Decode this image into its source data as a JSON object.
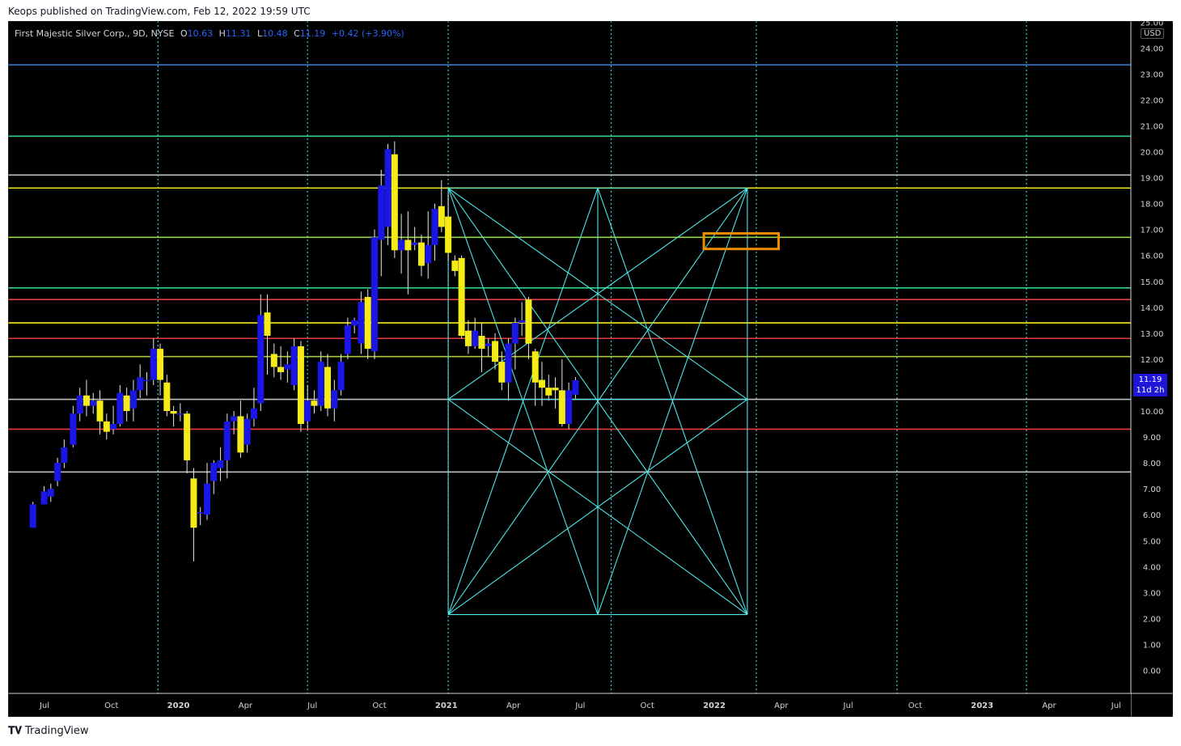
{
  "header": {
    "publisher_line": "Keops published on TradingView.com, Feb 12, 2022 19:59 UTC"
  },
  "legend": {
    "symbol": "First Majestic Silver Corp., 9D, NYSE",
    "o_label": "O",
    "o_value": "10.63",
    "h_label": "H",
    "h_value": "11.31",
    "l_label": "L",
    "l_value": "10.48",
    "c_label": "C",
    "c_value": "11.19",
    "change": "+0.42 (+3.90%)"
  },
  "currency": "USD",
  "last_price": {
    "value": "11.19",
    "countdown": "11d 2h"
  },
  "footer": {
    "brand": "TradingView",
    "logo": "tradingview-logo-icon"
  },
  "colors": {
    "up": "#1a17e6",
    "down": "#f5ec17",
    "background": "#000000",
    "fib": "#4de6e6",
    "target_box": "#f08c00"
  },
  "chart_data": {
    "type": "candlestick",
    "interval": "9D",
    "ylim": [
      0,
      25
    ],
    "y_ticks": [
      "0.00",
      "1.00",
      "2.00",
      "3.00",
      "4.00",
      "5.00",
      "6.00",
      "7.00",
      "8.00",
      "9.00",
      "10.00",
      "11.00",
      "12.00",
      "13.00",
      "14.00",
      "15.00",
      "16.00",
      "17.00",
      "18.00",
      "19.00",
      "20.00",
      "21.00",
      "22.00",
      "23.00",
      "24.00",
      "25.00"
    ],
    "x_ticks": [
      {
        "label": "Jul",
        "m": 0
      },
      {
        "label": "Oct",
        "m": 3
      },
      {
        "label": "2020",
        "m": 6,
        "bold": true
      },
      {
        "label": "Apr",
        "m": 9
      },
      {
        "label": "Jul",
        "m": 12
      },
      {
        "label": "Oct",
        "m": 15
      },
      {
        "label": "2021",
        "m": 18,
        "bold": true
      },
      {
        "label": "Apr",
        "m": 21
      },
      {
        "label": "Jul",
        "m": 24
      },
      {
        "label": "Oct",
        "m": 27
      },
      {
        "label": "2022",
        "m": 30,
        "bold": true
      },
      {
        "label": "Apr",
        "m": 33
      },
      {
        "label": "Jul",
        "m": 36
      },
      {
        "label": "Oct",
        "m": 39
      },
      {
        "label": "2023",
        "m": 42,
        "bold": true
      },
      {
        "label": "Apr",
        "m": 45
      },
      {
        "label": "Jul",
        "m": 48
      }
    ],
    "candles": [
      [
        -0.3,
        5.5,
        6.4,
        5.5,
        6.5
      ],
      [
        0.2,
        6.4,
        6.9,
        6.4,
        7.1
      ],
      [
        0.5,
        6.7,
        7.0,
        6.5,
        7.2
      ],
      [
        0.8,
        7.3,
        8.0,
        7.1,
        8.2
      ],
      [
        1.1,
        8.0,
        8.6,
        7.8,
        8.9
      ],
      [
        1.5,
        8.7,
        9.9,
        8.6,
        10.2
      ],
      [
        1.8,
        9.9,
        10.6,
        9.6,
        10.9
      ],
      [
        2.1,
        10.6,
        10.2,
        9.8,
        11.2
      ],
      [
        2.4,
        10.2,
        10.4,
        9.9,
        10.7
      ],
      [
        2.7,
        10.4,
        9.6,
        9.1,
        10.8
      ],
      [
        3.0,
        9.6,
        9.2,
        8.9,
        9.9
      ],
      [
        3.3,
        9.3,
        9.5,
        9.1,
        10.2
      ],
      [
        3.6,
        9.5,
        10.7,
        9.4,
        11.0
      ],
      [
        3.9,
        10.6,
        10.0,
        9.6,
        10.9
      ],
      [
        4.2,
        10.1,
        10.8,
        9.6,
        11.2
      ],
      [
        4.5,
        10.8,
        11.3,
        10.5,
        11.8
      ],
      [
        4.8,
        11.2,
        11.2,
        10.6,
        11.5
      ],
      [
        5.1,
        11.2,
        12.4,
        11.0,
        12.8
      ],
      [
        5.4,
        12.4,
        11.2,
        10.6,
        12.6
      ],
      [
        5.7,
        11.1,
        10.0,
        9.8,
        11.4
      ],
      [
        6.0,
        10.0,
        9.9,
        9.4,
        10.2
      ],
      [
        6.3,
        9.9,
        9.9,
        9.6,
        10.3
      ],
      [
        6.6,
        9.9,
        8.1,
        7.6,
        10.0
      ],
      [
        6.9,
        7.4,
        5.5,
        4.2,
        7.8
      ],
      [
        7.2,
        6.1,
        6.1,
        5.6,
        6.3
      ],
      [
        7.5,
        6.0,
        7.2,
        5.8,
        8.0
      ],
      [
        7.8,
        7.3,
        8.0,
        6.8,
        8.1
      ],
      [
        8.1,
        7.8,
        8.1,
        7.3,
        8.6
      ],
      [
        8.4,
        8.1,
        9.6,
        7.4,
        9.9
      ],
      [
        8.7,
        9.6,
        9.8,
        9.1,
        10.0
      ],
      [
        9.0,
        9.8,
        8.4,
        8.2,
        10.4
      ],
      [
        9.3,
        8.7,
        9.7,
        8.4,
        9.9
      ],
      [
        9.6,
        9.7,
        10.1,
        9.4,
        10.9
      ],
      [
        9.9,
        10.3,
        13.7,
        10.0,
        14.5
      ],
      [
        10.2,
        13.8,
        12.9,
        11.4,
        14.5
      ],
      [
        10.5,
        12.2,
        11.7,
        11.3,
        12.6
      ],
      [
        10.8,
        11.7,
        11.5,
        11.2,
        12.5
      ],
      [
        11.1,
        11.6,
        11.8,
        11.1,
        12.3
      ],
      [
        11.4,
        11.0,
        12.5,
        10.8,
        12.8
      ],
      [
        11.7,
        12.5,
        9.5,
        9.2,
        12.7
      ],
      [
        12.0,
        9.6,
        10.4,
        9.3,
        11.0
      ],
      [
        12.3,
        10.4,
        10.2,
        9.9,
        10.8
      ],
      [
        12.6,
        10.2,
        11.9,
        10.0,
        12.3
      ],
      [
        12.9,
        11.7,
        10.1,
        9.8,
        12.2
      ],
      [
        13.2,
        10.1,
        10.8,
        9.6,
        11.2
      ],
      [
        13.5,
        10.8,
        11.9,
        10.6,
        12.2
      ],
      [
        13.8,
        12.2,
        13.3,
        12.0,
        13.6
      ],
      [
        14.1,
        13.3,
        13.5,
        13.0,
        13.6
      ],
      [
        14.4,
        12.6,
        14.2,
        12.2,
        14.6
      ],
      [
        14.7,
        14.4,
        12.4,
        12.0,
        14.7
      ],
      [
        15.0,
        12.3,
        16.7,
        12.0,
        17.0
      ],
      [
        15.3,
        16.6,
        18.7,
        15.2,
        19.3
      ],
      [
        15.6,
        17.1,
        20.1,
        16.4,
        20.3
      ],
      [
        15.9,
        19.9,
        16.2,
        15.9,
        20.4
      ],
      [
        16.2,
        16.2,
        16.6,
        15.3,
        17.6
      ],
      [
        16.5,
        16.6,
        16.2,
        14.5,
        17.7
      ],
      [
        16.8,
        16.4,
        16.5,
        16.2,
        17.1
      ],
      [
        17.1,
        16.5,
        15.6,
        15.2,
        16.8
      ],
      [
        17.4,
        15.7,
        16.4,
        15.1,
        17.7
      ],
      [
        17.7,
        16.4,
        17.8,
        15.8,
        18.0
      ],
      [
        18.0,
        17.9,
        17.1,
        16.9,
        18.9
      ],
      [
        18.3,
        17.5,
        16.1,
        15.8,
        18.4
      ],
      [
        18.6,
        15.8,
        15.4,
        15.2,
        16.0
      ],
      [
        18.9,
        15.9,
        12.9,
        12.8,
        16.0
      ],
      [
        19.2,
        13.1,
        12.5,
        12.2,
        13.5
      ],
      [
        19.5,
        12.5,
        13.1,
        12.4,
        13.6
      ],
      [
        19.8,
        12.9,
        12.4,
        11.5,
        13.4
      ],
      [
        20.1,
        12.5,
        12.6,
        12.1,
        12.8
      ],
      [
        20.4,
        12.7,
        11.9,
        11.6,
        13.0
      ],
      [
        20.7,
        11.9,
        11.1,
        10.8,
        12.3
      ],
      [
        21.0,
        11.1,
        12.6,
        10.4,
        12.8
      ],
      [
        21.3,
        12.6,
        13.4,
        11.6,
        13.6
      ],
      [
        21.6,
        13.4,
        13.5,
        12.9,
        14.2
      ],
      [
        21.9,
        14.3,
        12.6,
        12.0,
        14.4
      ],
      [
        22.2,
        12.3,
        11.1,
        10.2,
        12.4
      ],
      [
        22.5,
        11.2,
        10.9,
        10.2,
        11.9
      ],
      [
        22.8,
        10.9,
        10.6,
        10.4,
        11.4
      ],
      [
        23.1,
        10.9,
        10.8,
        10.1,
        11.3
      ],
      [
        23.4,
        10.8,
        9.5,
        9.4,
        12.0
      ],
      [
        23.7,
        9.5,
        10.8,
        9.3,
        11.1
      ],
      [
        24.0,
        10.63,
        11.19,
        10.48,
        11.31
      ]
    ],
    "horizontal_levels": [
      {
        "price": 23.35,
        "color": "#3d7fe0"
      },
      {
        "price": 20.6,
        "color": "#2fd08a"
      },
      {
        "price": 19.1,
        "color": "#bfbfbf"
      },
      {
        "price": 18.6,
        "color": "#f5ec17"
      },
      {
        "price": 16.7,
        "color": "#9ad34a"
      },
      {
        "price": 14.75,
        "color": "#2fd08a"
      },
      {
        "price": 14.3,
        "color": "#e83a3a"
      },
      {
        "price": 13.4,
        "color": "#f5ec17"
      },
      {
        "price": 12.8,
        "color": "#e83a3a"
      },
      {
        "price": 12.1,
        "color": "#a8c83c"
      },
      {
        "price": 10.45,
        "color": "#bfbfbf"
      },
      {
        "price": 9.3,
        "color": "#e83a3a"
      },
      {
        "price": 7.65,
        "color": "#bfbfbf"
      }
    ],
    "vertical_dotted_m": [
      5.3,
      12.0,
      18.3,
      25.6,
      32.1,
      38.4,
      44.2
    ],
    "fib_box": {
      "m0": 18.3,
      "m1": 31.7,
      "p_top": 18.6,
      "p_bot": 2.15,
      "mid_price": 10.45
    },
    "target_box": {
      "m0": 29.75,
      "m1": 33.1,
      "p_top": 16.85,
      "p_bot": 16.25
    }
  }
}
